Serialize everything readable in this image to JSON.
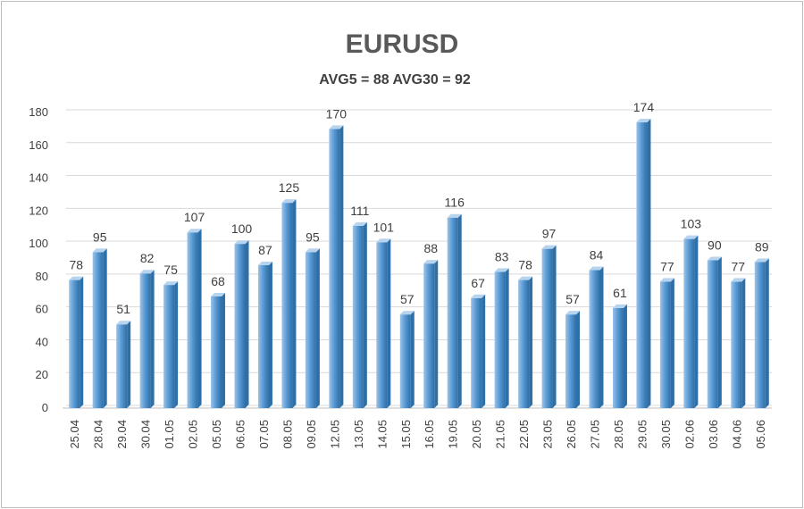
{
  "chart_data": {
    "type": "bar",
    "title": "EURUSD",
    "subtitle": "AVG5 = 88 AVG30 = 92",
    "xlabel": "",
    "ylabel": "",
    "ylim": [
      0,
      180
    ],
    "yticks": [
      0,
      20,
      40,
      60,
      80,
      100,
      120,
      140,
      160,
      180
    ],
    "grid": true,
    "categories": [
      "25.04",
      "28.04",
      "29.04",
      "30.04",
      "01.05",
      "02.05",
      "05.05",
      "06.05",
      "07.05",
      "08.05",
      "09.05",
      "12.05",
      "13.05",
      "14.05",
      "15.05",
      "16.05",
      "19.05",
      "20.05",
      "21.05",
      "22.05",
      "23.05",
      "26.05",
      "27.05",
      "28.05",
      "29.05",
      "30.05",
      "02.06",
      "03.06",
      "04.06",
      "05.06"
    ],
    "values": [
      78,
      95,
      51,
      82,
      75,
      107,
      68,
      100,
      87,
      125,
      95,
      170,
      111,
      101,
      57,
      88,
      116,
      67,
      83,
      78,
      97,
      57,
      84,
      61,
      174,
      77,
      103,
      90,
      77,
      89
    ],
    "colors": {
      "bar_fill": "#5b9bd5",
      "bar_light": "#9cc3e8",
      "bar_dark": "#2e6fa8",
      "grid": "#d9d9d9",
      "text": "#404040"
    }
  }
}
